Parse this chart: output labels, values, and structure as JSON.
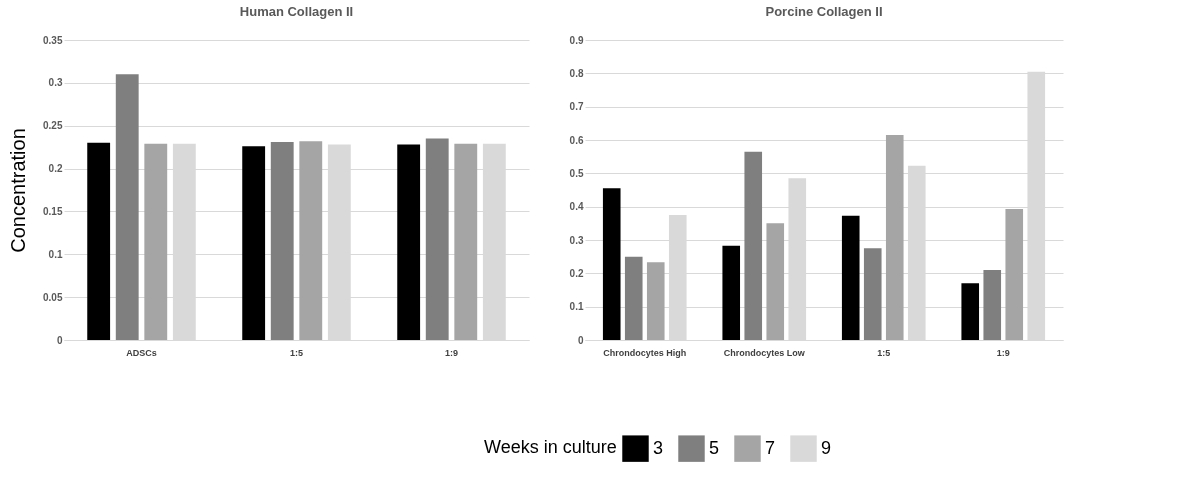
{
  "chart_data": [
    {
      "type": "bar",
      "title": "Human Collagen II",
      "ylabel": "Concentration",
      "legend_title": "Weeks in culture",
      "legend": "bottom",
      "grid": "y",
      "categories": [
        "ADSCs",
        "1:5",
        "1:9"
      ],
      "ylim": [
        0,
        0.35
      ],
      "yticks": [
        0,
        0.05,
        0.1,
        0.15,
        0.2,
        0.25,
        0.3,
        0.35
      ],
      "series": [
        {
          "name": "3",
          "color": "#000000",
          "values": [
            0.23,
            0.226,
            0.228
          ]
        },
        {
          "name": "5",
          "color": "#7f7f7f",
          "values": [
            0.31,
            0.231,
            0.235
          ]
        },
        {
          "name": "7",
          "color": "#a5a5a5",
          "values": [
            0.229,
            0.232,
            0.229
          ]
        },
        {
          "name": "9",
          "color": "#d9d9d9",
          "values": [
            0.229,
            0.228,
            0.229
          ]
        }
      ]
    },
    {
      "type": "bar",
      "title": "Porcine Collagen II",
      "legend": "bottom",
      "grid": "y",
      "categories": [
        "Chrondocytes High",
        "Chrondocytes Low",
        "1:5",
        "1:9"
      ],
      "ylim": [
        0,
        0.9
      ],
      "yticks": [
        0,
        0.1,
        0.2,
        0.3,
        0.4,
        0.5,
        0.6,
        0.7,
        0.8,
        0.9
      ],
      "series": [
        {
          "name": "3",
          "color": "#000000",
          "values": [
            0.455,
            0.283,
            0.373,
            0.17
          ]
        },
        {
          "name": "5",
          "color": "#7f7f7f",
          "values": [
            0.25,
            0.565,
            0.275,
            0.21
          ]
        },
        {
          "name": "7",
          "color": "#a5a5a5",
          "values": [
            0.233,
            0.35,
            0.615,
            0.393
          ]
        },
        {
          "name": "9",
          "color": "#d9d9d9",
          "values": [
            0.375,
            0.485,
            0.523,
            0.805
          ]
        }
      ]
    }
  ]
}
